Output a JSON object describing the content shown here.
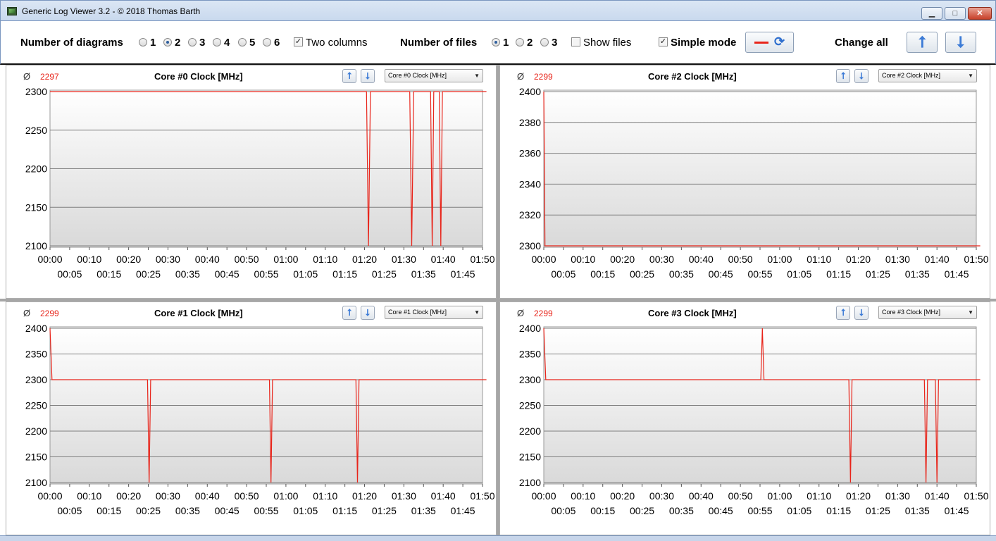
{
  "window": {
    "title": "Generic Log Viewer 3.2 - © 2018 Thomas Barth"
  },
  "toolbar": {
    "diagrams_label": "Number of diagrams",
    "diagram_options": [
      "1",
      "2",
      "3",
      "4",
      "5",
      "6"
    ],
    "diagrams_selected": "2",
    "two_columns_label": "Two columns",
    "two_columns_checked": true,
    "files_label": "Number of files",
    "file_options": [
      "1",
      "2",
      "3"
    ],
    "files_selected": "1",
    "show_files_label": "Show files",
    "show_files_checked": false,
    "simple_mode_label": "Simple mode",
    "simple_mode_checked": true,
    "change_all_label": "Change all"
  },
  "panels": [
    {
      "avg_symbol": "Ø",
      "avg": "2297",
      "title": "Core #0 Clock [MHz]",
      "selector": "Core #0 Clock [MHz]"
    },
    {
      "avg_symbol": "Ø",
      "avg": "2299",
      "title": "Core #2 Clock [MHz]",
      "selector": "Core #2 Clock [MHz]"
    },
    {
      "avg_symbol": "Ø",
      "avg": "2299",
      "title": "Core #1 Clock [MHz]",
      "selector": "Core #1 Clock [MHz]"
    },
    {
      "avg_symbol": "Ø",
      "avg": "2299",
      "title": "Core #3 Clock [MHz]",
      "selector": "Core #3 Clock [MHz]"
    }
  ],
  "chart_data": [
    {
      "type": "line",
      "title": "Core #0 Clock [MHz]",
      "xlim": [
        0,
        110
      ],
      "ylim": [
        2100,
        2300
      ],
      "yticks": [
        2100,
        2150,
        2200,
        2250,
        2300
      ],
      "xticks_top": [
        "00:00",
        "00:10",
        "00:20",
        "00:30",
        "00:40",
        "00:50",
        "01:00",
        "01:10",
        "01:20",
        "01:30",
        "01:40",
        "01:50"
      ],
      "xticks_bottom": [
        "00:05",
        "00:15",
        "00:25",
        "00:35",
        "00:45",
        "00:55",
        "01:05",
        "01:15",
        "01:25",
        "01:35",
        "01:45"
      ],
      "line_color": "#e8241a",
      "series": [
        {
          "x": [
            0,
            80.5,
            81,
            81.5,
            91.5,
            92,
            92.5,
            96.8,
            97.2,
            97.6,
            99,
            99.4,
            99.8,
            111
          ],
          "y": [
            2300,
            2300,
            2100,
            2300,
            2300,
            2100,
            2300,
            2300,
            2100,
            2300,
            2300,
            2100,
            2300,
            2300
          ]
        }
      ]
    },
    {
      "type": "line",
      "title": "Core #2 Clock [MHz]",
      "xlim": [
        0,
        110
      ],
      "ylim": [
        2300,
        2400
      ],
      "yticks": [
        2300,
        2320,
        2340,
        2360,
        2380,
        2400
      ],
      "xticks_top": [
        "00:00",
        "00:10",
        "00:20",
        "00:30",
        "00:40",
        "00:50",
        "01:00",
        "01:10",
        "01:20",
        "01:30",
        "01:40",
        "01:50"
      ],
      "xticks_bottom": [
        "00:05",
        "00:15",
        "00:25",
        "00:35",
        "00:45",
        "00:55",
        "01:05",
        "01:15",
        "01:25",
        "01:35",
        "01:45"
      ],
      "line_color": "#e8241a",
      "series": [
        {
          "x": [
            0,
            0.3,
            111
          ],
          "y": [
            2400,
            2300,
            2300
          ]
        }
      ]
    },
    {
      "type": "line",
      "title": "Core #1 Clock [MHz]",
      "xlim": [
        0,
        110
      ],
      "ylim": [
        2100,
        2400
      ],
      "yticks": [
        2100,
        2150,
        2200,
        2250,
        2300,
        2350,
        2400
      ],
      "xticks_top": [
        "00:00",
        "00:10",
        "00:20",
        "00:30",
        "00:40",
        "00:50",
        "01:00",
        "01:10",
        "01:20",
        "01:30",
        "01:40",
        "01:50"
      ],
      "xticks_bottom": [
        "00:05",
        "00:15",
        "00:25",
        "00:35",
        "00:45",
        "00:55",
        "01:05",
        "01:15",
        "01:25",
        "01:35",
        "01:45"
      ],
      "line_color": "#e8241a",
      "series": [
        {
          "x": [
            0,
            0.5,
            24.8,
            25.2,
            25.6,
            55.8,
            56.2,
            56.6,
            77.8,
            78.2,
            78.6,
            111
          ],
          "y": [
            2400,
            2300,
            2300,
            2100,
            2300,
            2300,
            2100,
            2300,
            2300,
            2100,
            2300,
            2300
          ]
        }
      ]
    },
    {
      "type": "line",
      "title": "Core #3 Clock [MHz]",
      "xlim": [
        0,
        110
      ],
      "ylim": [
        2100,
        2400
      ],
      "yticks": [
        2100,
        2150,
        2200,
        2250,
        2300,
        2350,
        2400
      ],
      "xticks_top": [
        "00:00",
        "00:10",
        "00:20",
        "00:30",
        "00:40",
        "00:50",
        "01:00",
        "01:10",
        "01:20",
        "01:30",
        "01:40",
        "01:50"
      ],
      "xticks_bottom": [
        "00:05",
        "00:15",
        "00:25",
        "00:35",
        "00:45",
        "00:55",
        "01:05",
        "01:15",
        "01:25",
        "01:35",
        "01:45"
      ],
      "line_color": "#e8241a",
      "series": [
        {
          "x": [
            0,
            0.5,
            55.2,
            55.6,
            56,
            77.6,
            78,
            78.4,
            96.8,
            97.2,
            97.6,
            99.6,
            100,
            100.4,
            111
          ],
          "y": [
            2400,
            2300,
            2300,
            2400,
            2300,
            2300,
            2100,
            2300,
            2300,
            2100,
            2300,
            2300,
            2100,
            2300,
            2300
          ]
        }
      ]
    }
  ]
}
